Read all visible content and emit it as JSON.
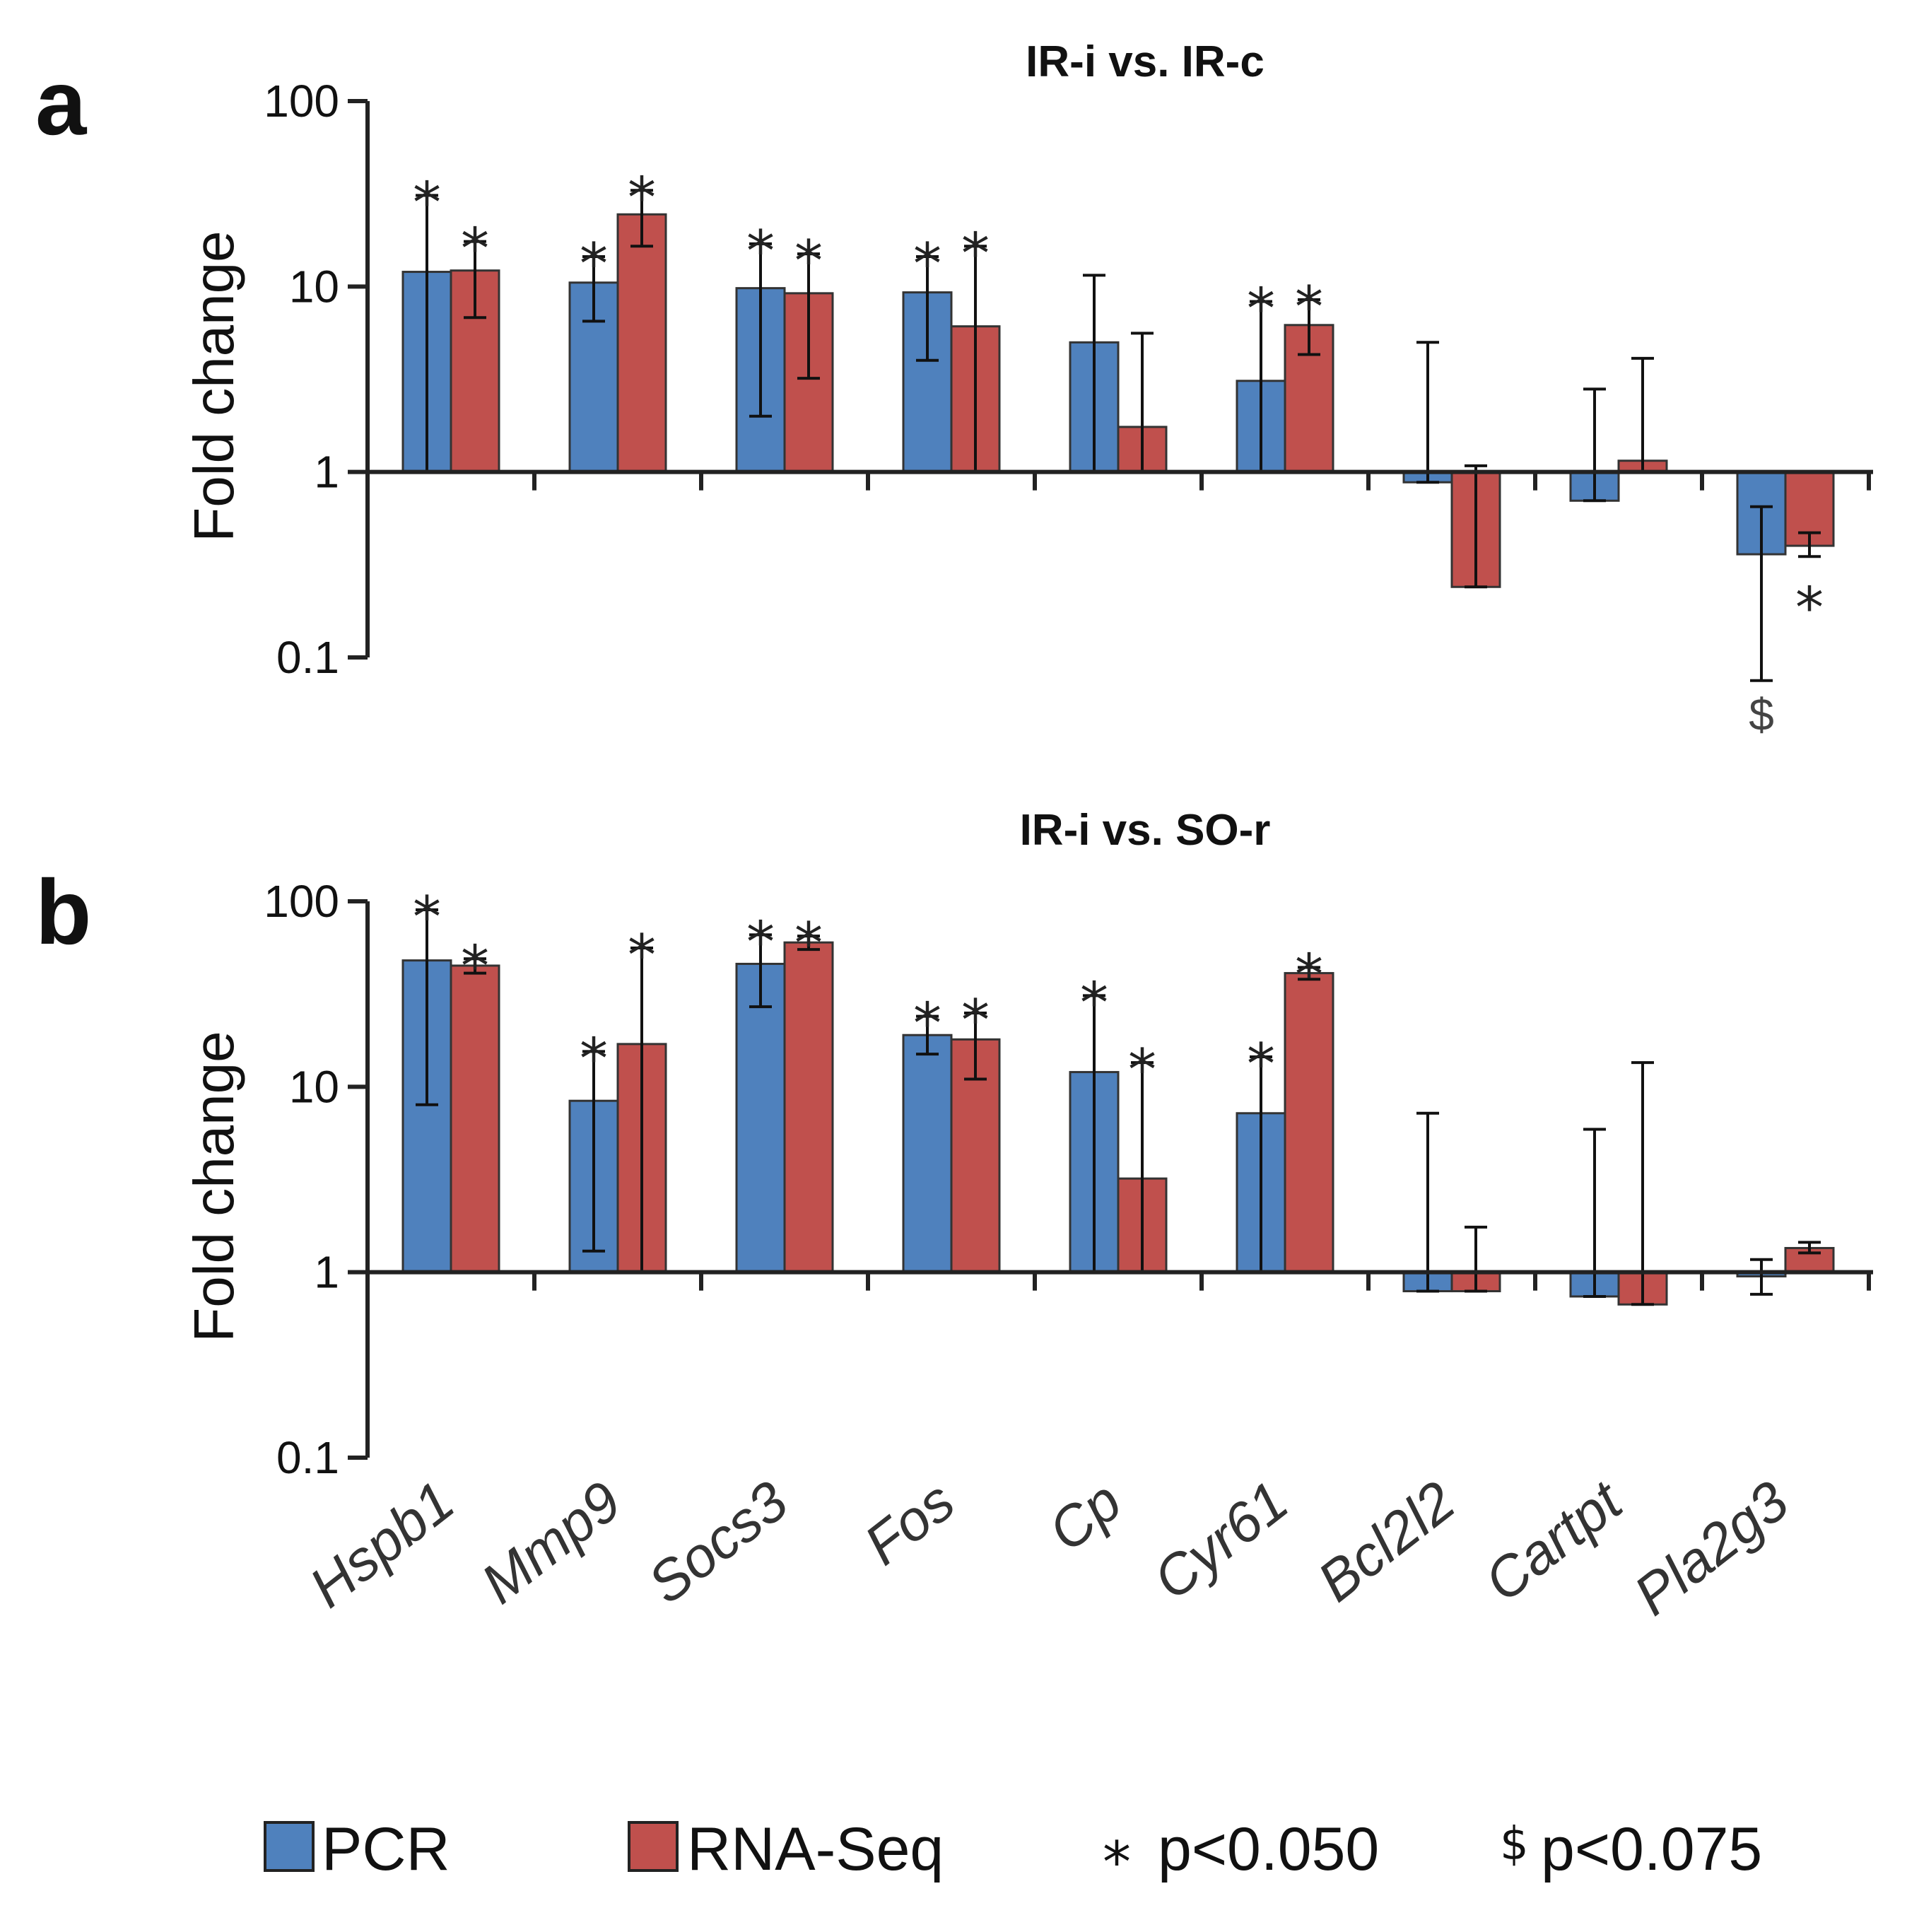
{
  "colors": {
    "pcr": "#4f81bd",
    "rnaseq": "#c0504d",
    "axis": "#222222"
  },
  "legend": {
    "pcr_label": "PCR",
    "rnaseq_label": "RNA-Seq",
    "sig_symbol": "*",
    "sig_label": "p<0.050",
    "trend_symbol": "$",
    "trend_label": "p<0.075"
  },
  "chart_data": [
    {
      "type": "bar",
      "panel_letter": "a",
      "title": "IR-i vs. IR-c",
      "xlabel": "",
      "ylabel": "Fold change",
      "yscale": "log",
      "ylim": [
        0.1,
        100
      ],
      "yticks": [
        "100",
        "10",
        "1",
        "0.1"
      ],
      "categories": [
        "Hspb1",
        "Mmp9",
        "Socs3",
        "Fos",
        "Cp",
        "Cyr61",
        "Bcl2l2",
        "Cartpt",
        "Pla2g3"
      ],
      "series": [
        {
          "name": "PCR",
          "values": [
            12,
            10.5,
            9.8,
            9.3,
            5,
            3.1,
            0.88,
            0.7,
            0.36
          ],
          "err_low": [
            1,
            6.5,
            2,
            4,
            1,
            1,
            0.88,
            0.7,
            0.075
          ],
          "err_high": [
            31,
            14.5,
            17,
            14.5,
            11.5,
            8.3,
            5,
            2.8,
            0.65
          ],
          "sig": [
            "*",
            "*",
            "*",
            "*",
            "",
            "*",
            "",
            "",
            "$"
          ]
        },
        {
          "name": "RNA-Seq",
          "values": [
            12.2,
            24.5,
            9.2,
            6.1,
            1.75,
            6.2,
            0.24,
            1.15,
            0.4
          ],
          "err_low": [
            6.8,
            16.5,
            3.2,
            1,
            1,
            4.3,
            0.24,
            1,
            0.35
          ],
          "err_high": [
            17.5,
            33,
            15,
            16.5,
            5.6,
            8.5,
            1.08,
            4.1,
            0.47
          ],
          "sig": [
            "*",
            "*",
            "*",
            "*",
            "",
            "*",
            "",
            "",
            "*"
          ]
        }
      ]
    },
    {
      "type": "bar",
      "panel_letter": "b",
      "title": "IR-i vs. SO-r",
      "xlabel": "",
      "ylabel": "Fold change",
      "yscale": "log",
      "ylim": [
        0.1,
        100
      ],
      "yticks": [
        "100",
        "10",
        "1",
        "0.1"
      ],
      "categories": [
        "Hspb1",
        "Mmp9",
        "Socs3",
        "Fos",
        "Cp",
        "Cyr61",
        "Bcl2l2",
        "Cartpt",
        "Pla2g3"
      ],
      "series": [
        {
          "name": "PCR",
          "values": [
            48,
            8.4,
            46,
            19,
            12,
            7.2,
            0.79,
            0.74,
            0.95
          ],
          "err_low": [
            8,
            1.3,
            27,
            15,
            1,
            1,
            0.79,
            0.74,
            0.76
          ],
          "err_high": [
            90,
            15.5,
            66,
            24,
            31,
            14.5,
            7.2,
            5.9,
            1.17
          ],
          "sig": [
            "*",
            "*",
            "*",
            "*",
            "*",
            "*",
            "",
            "",
            ""
          ]
        },
        {
          "name": "RNA-Seq",
          "values": [
            45,
            17,
            60,
            18,
            3.2,
            41,
            0.79,
            0.67,
            1.35
          ],
          "err_low": [
            41,
            1,
            55,
            11,
            1,
            38,
            0.79,
            0.67,
            1.27
          ],
          "err_high": [
            49,
            56,
            65,
            25,
            13.5,
            44,
            1.75,
            13.5,
            1.45
          ],
          "sig": [
            "*",
            "*",
            "*",
            "*",
            "*",
            "*",
            "",
            "",
            ""
          ]
        }
      ]
    }
  ]
}
